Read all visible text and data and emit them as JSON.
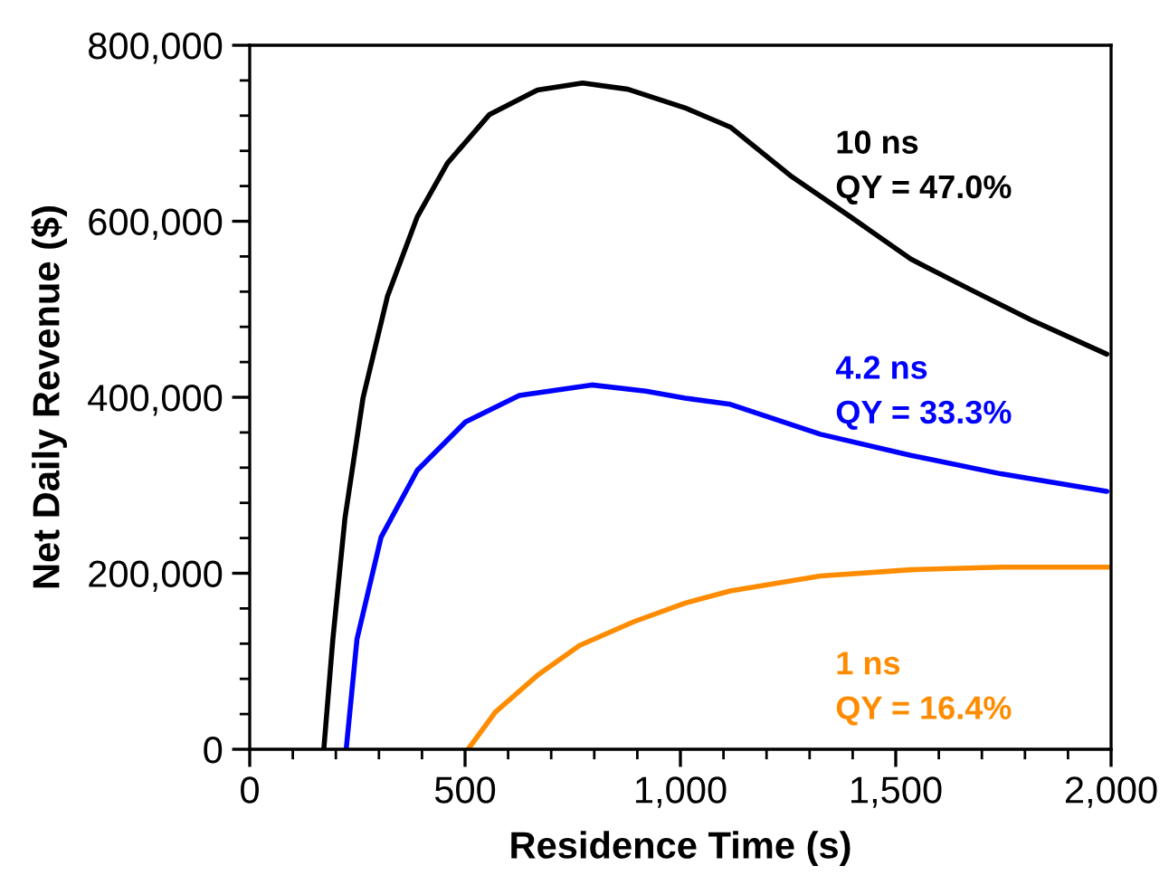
{
  "chart_data": {
    "type": "line",
    "xlabel": "Residence Time (s)",
    "ylabel": "Net Daily Revenue ($)",
    "xlim": [
      0,
      2000
    ],
    "ylim": [
      0,
      800000
    ],
    "xticks": [
      0,
      500,
      {
        "value": 1000,
        "label": "1,000"
      },
      {
        "value": 1500,
        "label": "1,500"
      },
      {
        "value": 2000,
        "label": "2,000"
      }
    ],
    "yticks": [
      0,
      {
        "value": 200000,
        "label": "200,000"
      },
      {
        "value": 400000,
        "label": "400,000"
      },
      {
        "value": 600000,
        "label": "600,000"
      },
      {
        "value": 800000,
        "label": "800,000"
      }
    ],
    "grid": false,
    "legend": false,
    "marker": "none",
    "line_style": "solid",
    "series": [
      {
        "name": "10 ns\nQY = 47.0%",
        "color": "#000000",
        "x": [
          172,
          193,
          221,
          263,
          320,
          389,
          459,
          556,
          668,
          773,
          878,
          1010,
          1116,
          1255,
          1395,
          1535,
          1675,
          1814,
          1990
        ],
        "values": [
          0,
          125000,
          262000,
          399000,
          515000,
          605000,
          666000,
          721000,
          749000,
          757000,
          750000,
          729000,
          707000,
          652000,
          605000,
          557000,
          522000,
          488000,
          449000
        ]
      },
      {
        "name": "4.2 ns\nQY = 33.3%",
        "color": "#0000ff",
        "x": [
          224,
          249,
          305,
          389,
          501,
          626,
          794,
          920,
          1011,
          1116,
          1325,
          1535,
          1744,
          1990
        ],
        "values": [
          0,
          125000,
          241000,
          317000,
          372000,
          402000,
          414000,
          407000,
          399000,
          392000,
          358000,
          334000,
          313000,
          293000
        ]
      },
      {
        "name": "1 ns\nQY = 16.4%",
        "color": "#ff8c00",
        "x": [
          507,
          570,
          668,
          766,
          892,
          1010,
          1116,
          1325,
          1535,
          1744,
          2000
        ],
        "values": [
          0,
          42000,
          84000,
          118000,
          145000,
          166000,
          180000,
          197000,
          204000,
          207000,
          207000
        ]
      }
    ]
  }
}
